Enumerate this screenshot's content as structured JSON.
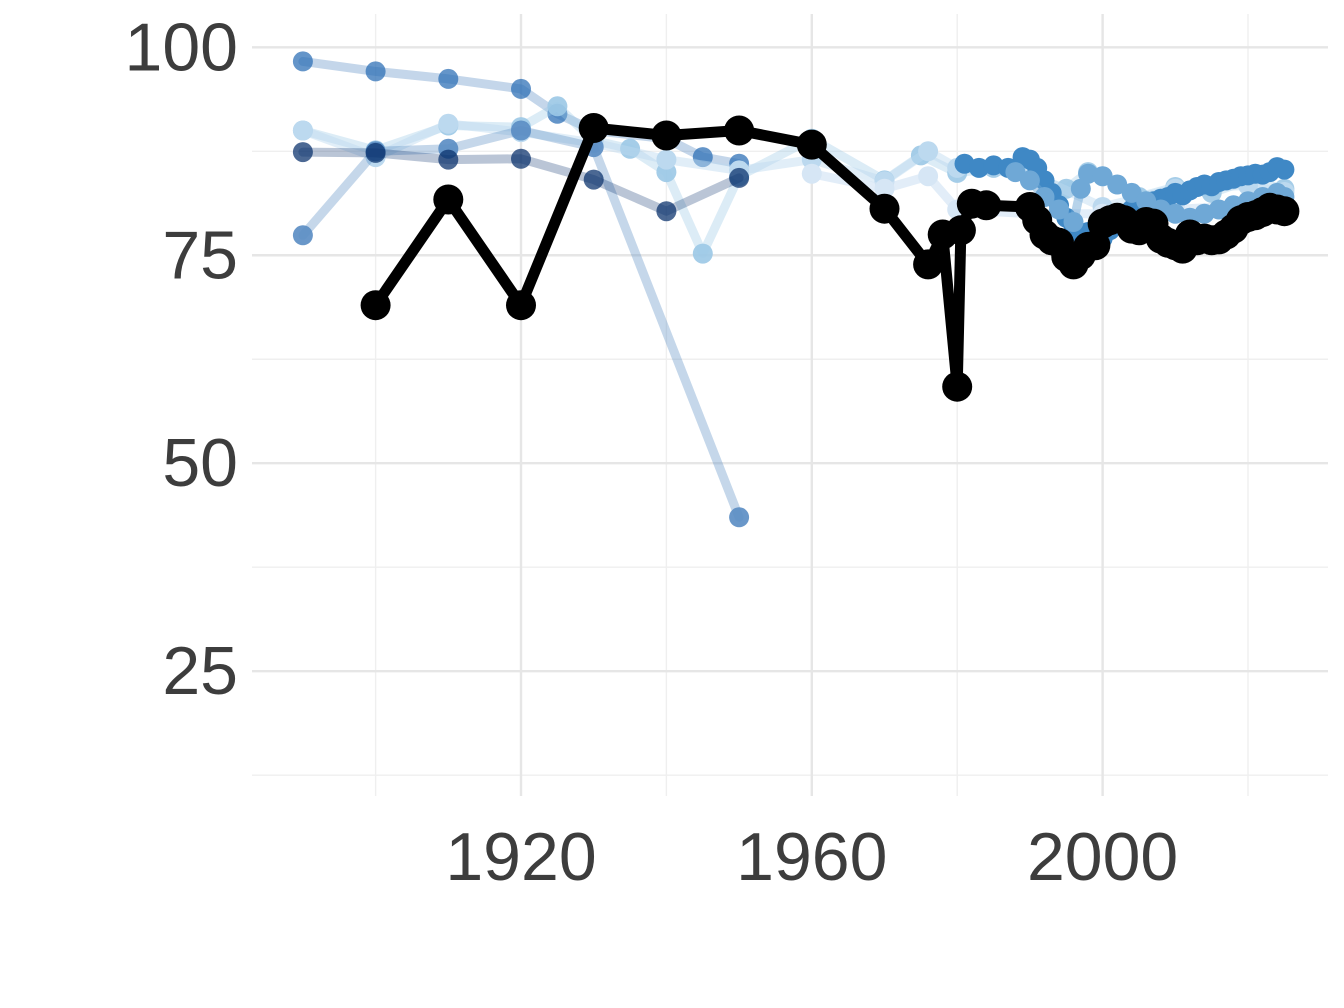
{
  "chart_data": {
    "type": "line",
    "title": "",
    "xlabel": "",
    "ylabel": "",
    "xlim": [
      1883,
      2031
    ],
    "ylim": [
      10,
      104
    ],
    "x_ticks": [
      1920,
      1960,
      2000
    ],
    "y_ticks": [
      25,
      50,
      75,
      100
    ],
    "x_minor_ticks": [
      1900,
      1940,
      1980,
      2020
    ],
    "y_minor_ticks": [
      12.5,
      37.5,
      62.5,
      87.5
    ],
    "grid": true,
    "legend": "none",
    "highlight_color": "#000000",
    "series": [
      {
        "color": "#2a6db5",
        "opacity": 0.28,
        "points": [
          [
            1890,
            98.3
          ],
          [
            1900,
            97.1
          ],
          [
            1910,
            96.2
          ],
          [
            1920,
            95.0
          ],
          [
            1925,
            92.0
          ],
          [
            1930,
            90.0
          ],
          [
            1940,
            89.0
          ],
          [
            1945,
            86.8
          ],
          [
            1950,
            86.0
          ]
        ]
      },
      {
        "color": "#9cc8e6",
        "opacity": 0.35,
        "points": [
          [
            1890,
            90.0
          ],
          [
            1900,
            87.6
          ],
          [
            1910,
            90.6
          ],
          [
            1920,
            90.4
          ],
          [
            1925,
            92.9
          ],
          [
            1930,
            88.8
          ],
          [
            1935,
            87.8
          ],
          [
            1940,
            85.0
          ],
          [
            1945,
            75.2
          ],
          [
            1950,
            84.5
          ],
          [
            1960,
            89.0
          ],
          [
            1970,
            84.0
          ],
          [
            1975,
            87.0
          ],
          [
            1980,
            84.9
          ],
          [
            1985,
            85.5
          ],
          [
            1990,
            84.5
          ],
          [
            1995,
            83.0
          ],
          [
            1998,
            85.0
          ],
          [
            2000,
            84.5
          ],
          [
            2005,
            82.0
          ],
          [
            2010,
            83.2
          ],
          [
            2015,
            82.5
          ],
          [
            2020,
            84.0
          ],
          [
            2025,
            83.0
          ]
        ]
      },
      {
        "color": "#bcd9ef",
        "opacity": 0.45,
        "points": [
          [
            1890,
            90.0
          ],
          [
            1900,
            86.8
          ],
          [
            1910,
            90.8
          ],
          [
            1920,
            89.8
          ],
          [
            1930,
            88.5
          ],
          [
            1940,
            86.5
          ],
          [
            1950,
            85.2
          ],
          [
            1960,
            86.5
          ],
          [
            1970,
            83.9
          ],
          [
            1976,
            87.5
          ],
          [
            1980,
            85.5
          ],
          [
            1990,
            84.8
          ],
          [
            2000,
            80.8
          ],
          [
            2010,
            83.0
          ],
          [
            2020,
            83.4
          ],
          [
            2025,
            82.6
          ]
        ]
      },
      {
        "color": "#5a8dc4",
        "opacity": 0.35,
        "points": [
          [
            1890,
            77.4
          ],
          [
            1900,
            87.5
          ],
          [
            1910,
            87.8
          ],
          [
            1920,
            90.0
          ],
          [
            1930,
            88.0
          ],
          [
            1950,
            43.5
          ]
        ]
      },
      {
        "color": "#08306b",
        "opacity": 0.28,
        "points": [
          [
            1890,
            87.4
          ],
          [
            1900,
            87.3
          ],
          [
            1910,
            86.5
          ],
          [
            1920,
            86.6
          ],
          [
            1930,
            84.1
          ],
          [
            1940,
            80.3
          ],
          [
            1950,
            84.3
          ]
        ]
      },
      {
        "color": "#d6e6f5",
        "opacity": 0.7,
        "points": [
          [
            1960,
            84.8
          ],
          [
            1970,
            83.0
          ],
          [
            1976,
            84.5
          ],
          [
            1980,
            80.5
          ],
          [
            1990,
            80.0
          ],
          [
            2000,
            80.0
          ],
          [
            2010,
            80.5
          ],
          [
            2020,
            81.0
          ],
          [
            2025,
            81.0
          ]
        ]
      },
      {
        "color": "#3f88c5",
        "opacity": 0.5,
        "points": [
          [
            1981,
            86.0
          ],
          [
            1983,
            85.5
          ],
          [
            1985,
            85.8
          ],
          [
            1987,
            85.5
          ],
          [
            1989,
            86.8
          ],
          [
            1990,
            86.5
          ],
          [
            1991,
            85.5
          ],
          [
            1992,
            84.0
          ],
          [
            1993,
            82.5
          ],
          [
            1994,
            81.0
          ],
          [
            1995,
            79.5
          ],
          [
            1996,
            78.5
          ],
          [
            1997,
            77.5
          ],
          [
            1998,
            77.8
          ],
          [
            1999,
            77.2
          ],
          [
            2000,
            77.0
          ],
          [
            2001,
            78.0
          ],
          [
            2002,
            79.0
          ],
          [
            2003,
            80.0
          ],
          [
            2004,
            80.5
          ],
          [
            2005,
            81.0
          ],
          [
            2006,
            81.2
          ],
          [
            2007,
            81.5
          ],
          [
            2008,
            81.8
          ],
          [
            2009,
            82.0
          ],
          [
            2010,
            82.5
          ],
          [
            2011,
            82.2
          ],
          [
            2012,
            82.8
          ],
          [
            2013,
            83.2
          ],
          [
            2014,
            83.5
          ],
          [
            2015,
            83.3
          ],
          [
            2016,
            83.8
          ],
          [
            2017,
            84.0
          ],
          [
            2018,
            84.2
          ],
          [
            2019,
            84.5
          ],
          [
            2020,
            84.6
          ],
          [
            2021,
            84.8
          ],
          [
            2022,
            84.7
          ],
          [
            2023,
            85.0
          ],
          [
            2024,
            85.6
          ],
          [
            2025,
            85.3
          ]
        ]
      },
      {
        "color": "#6fa8d6",
        "opacity": 0.5,
        "points": [
          [
            1988,
            85.0
          ],
          [
            1990,
            84.0
          ],
          [
            1992,
            82.0
          ],
          [
            1994,
            80.5
          ],
          [
            1996,
            79.0
          ],
          [
            1997,
            83.0
          ],
          [
            1998,
            84.8
          ],
          [
            2000,
            84.5
          ],
          [
            2002,
            83.5
          ],
          [
            2004,
            82.5
          ],
          [
            2006,
            81.5
          ],
          [
            2008,
            80.5
          ],
          [
            2010,
            80.0
          ],
          [
            2012,
            79.5
          ],
          [
            2014,
            80.0
          ],
          [
            2016,
            80.5
          ],
          [
            2018,
            81.0
          ],
          [
            2020,
            81.5
          ],
          [
            2022,
            82.0
          ],
          [
            2024,
            82.5
          ],
          [
            2025,
            82.0
          ]
        ]
      },
      {
        "color": "#000000",
        "opacity": 1,
        "highlight": true,
        "points": [
          [
            1900,
            69.0
          ],
          [
            1910,
            81.7
          ],
          [
            1920,
            69.0
          ],
          [
            1930,
            90.3
          ],
          [
            1940,
            89.4
          ],
          [
            1950,
            90.0
          ],
          [
            1960,
            88.3
          ],
          [
            1970,
            80.6
          ],
          [
            1976,
            73.9
          ],
          [
            1978,
            77.5
          ],
          [
            1980,
            59.2
          ],
          [
            1980.5,
            78.0
          ],
          [
            1982,
            81.2
          ],
          [
            1984,
            81.0
          ],
          [
            1990,
            80.8
          ],
          [
            1991,
            79.2
          ],
          [
            1992,
            77.5
          ],
          [
            1993,
            76.8
          ],
          [
            1994,
            76.5
          ],
          [
            1995,
            74.8
          ],
          [
            1996,
            73.9
          ],
          [
            1997,
            75.0
          ],
          [
            1998,
            76.0
          ],
          [
            1999,
            76.2
          ],
          [
            2000,
            78.8
          ],
          [
            2001,
            79.2
          ],
          [
            2002,
            79.5
          ],
          [
            2003,
            79.2
          ],
          [
            2004,
            78.2
          ],
          [
            2005,
            78.0
          ],
          [
            2006,
            79.0
          ],
          [
            2007,
            78.8
          ],
          [
            2008,
            77.0
          ],
          [
            2009,
            76.5
          ],
          [
            2010,
            76.2
          ],
          [
            2011,
            75.8
          ],
          [
            2012,
            77.5
          ],
          [
            2013,
            76.8
          ],
          [
            2014,
            77.0
          ],
          [
            2015,
            76.8
          ],
          [
            2016,
            76.9
          ],
          [
            2017,
            77.5
          ],
          [
            2018,
            78.2
          ],
          [
            2019,
            79.2
          ],
          [
            2020,
            79.6
          ],
          [
            2021,
            79.8
          ],
          [
            2022,
            80.2
          ],
          [
            2023,
            80.7
          ],
          [
            2024,
            80.5
          ],
          [
            2025,
            80.3
          ]
        ]
      }
    ]
  }
}
